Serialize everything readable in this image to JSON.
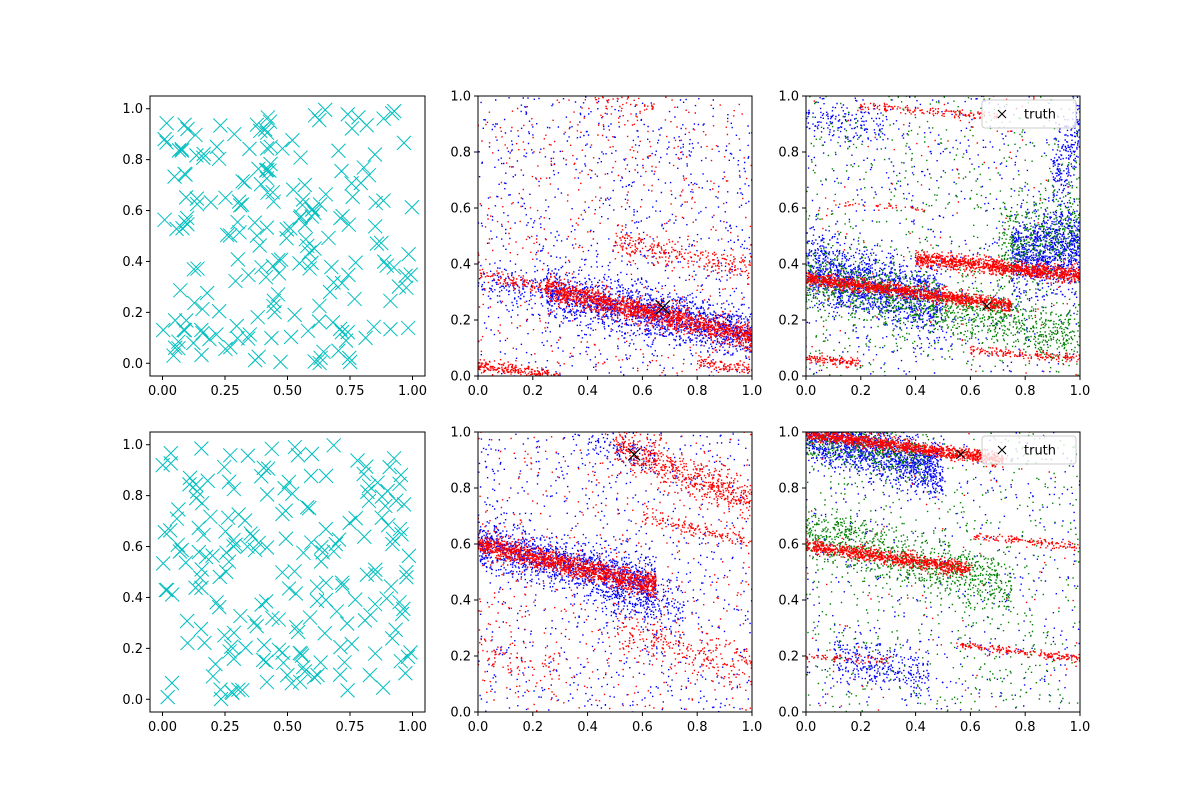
{
  "chart_data": [
    {
      "panel": "top-left",
      "type": "scatter",
      "title": "",
      "xlabel": "",
      "ylabel": "",
      "xlim": [
        -0.05,
        1.05
      ],
      "ylim": [
        -0.05,
        1.05
      ],
      "xticks": [
        0.0,
        0.25,
        0.5,
        0.75,
        1.0
      ],
      "xtick_labels": [
        "0.00",
        "0.25",
        "0.50",
        "0.75",
        "1.00"
      ],
      "yticks": [
        0.0,
        0.2,
        0.4,
        0.6,
        0.8,
        1.0
      ],
      "ytick_labels": [
        "0.0",
        "0.2",
        "0.4",
        "0.6",
        "0.8",
        "1.0"
      ],
      "series": [
        {
          "name": "samples",
          "marker": "x",
          "color": "#00bfbf",
          "size": "large",
          "count": 200,
          "distribution": "uniform",
          "seed": 11
        }
      ]
    },
    {
      "panel": "top-middle",
      "type": "scatter",
      "title": "",
      "xlabel": "",
      "ylabel": "",
      "xlim": [
        0.0,
        1.0
      ],
      "ylim": [
        0.0,
        1.0
      ],
      "xticks": [
        0.0,
        0.2,
        0.4,
        0.6,
        0.8,
        1.0
      ],
      "xtick_labels": [
        "0.0",
        "0.2",
        "0.4",
        "0.6",
        "0.8",
        "1.0"
      ],
      "yticks": [
        0.0,
        0.2,
        0.4,
        0.6,
        0.8,
        1.0
      ],
      "ytick_labels": [
        "0.0",
        "0.2",
        "0.4",
        "0.6",
        "0.8",
        "1.0"
      ],
      "series": [
        {
          "name": "blue",
          "color": "#0000ff",
          "uniform_count": 900,
          "seed": 21,
          "bands": [
            {
              "x0": 0.25,
              "x1": 1.0,
              "y_at_x0": 0.3,
              "y_at_x1": 0.15,
              "spread": 0.045,
              "count": 1500
            },
            {
              "x0": 0.0,
              "x1": 0.3,
              "y_at_x0": 0.33,
              "y_at_x1": 0.3,
              "spread": 0.04,
              "count": 150
            }
          ]
        },
        {
          "name": "red",
          "color": "#ff0000",
          "uniform_count": 550,
          "seed": 22,
          "bands": [
            {
              "x0": 0.25,
              "x1": 1.0,
              "y_at_x0": 0.31,
              "y_at_x1": 0.14,
              "spread": 0.022,
              "count": 1500
            },
            {
              "x0": 0.0,
              "x1": 0.25,
              "y_at_x0": 0.37,
              "y_at_x1": 0.31,
              "spread": 0.012,
              "count": 100
            },
            {
              "x0": 0.0,
              "x1": 0.3,
              "y_at_x0": 0.04,
              "y_at_x1": 0.0,
              "spread": 0.012,
              "count": 220
            },
            {
              "x0": 0.5,
              "x1": 1.0,
              "y_at_x0": 0.48,
              "y_at_x1": 0.38,
              "spread": 0.025,
              "count": 250
            },
            {
              "x0": 0.8,
              "x1": 1.0,
              "y_at_x0": 0.05,
              "y_at_x1": 0.02,
              "spread": 0.012,
              "count": 100
            },
            {
              "x0": 0.4,
              "x1": 0.65,
              "y_at_x0": 1.0,
              "y_at_x1": 0.95,
              "spread": 0.02,
              "count": 60
            }
          ]
        }
      ],
      "truth": {
        "x": 0.675,
        "y": 0.245,
        "marker": "x",
        "color": "#000000",
        "size": "large"
      }
    },
    {
      "panel": "top-right",
      "type": "scatter",
      "title": "",
      "xlabel": "",
      "ylabel": "",
      "xlim": [
        0.0,
        1.0
      ],
      "ylim": [
        0.0,
        1.0
      ],
      "xticks": [
        0.0,
        0.2,
        0.4,
        0.6,
        0.8,
        1.0
      ],
      "xtick_labels": [
        "0.0",
        "0.2",
        "0.4",
        "0.6",
        "0.8",
        "1.0"
      ],
      "yticks": [
        0.0,
        0.2,
        0.4,
        0.6,
        0.8,
        1.0
      ],
      "ytick_labels": [
        "0.0",
        "0.2",
        "0.4",
        "0.6",
        "0.8",
        "1.0"
      ],
      "series": [
        {
          "name": "blue",
          "color": "#0000ff",
          "uniform_count": 650,
          "seed": 31,
          "bands": [
            {
              "x0": 0.0,
              "x1": 0.5,
              "y_at_x0": 0.38,
              "y_at_x1": 0.25,
              "spread": 0.065,
              "count": 1300
            },
            {
              "x0": 0.75,
              "x1": 1.0,
              "y_at_x0": 0.43,
              "y_at_x1": 0.47,
              "spread": 0.07,
              "count": 900
            },
            {
              "x0": 0.9,
              "x1": 1.0,
              "y_at_x0": 0.7,
              "y_at_x1": 0.9,
              "spread": 0.08,
              "count": 200
            },
            {
              "x0": 0.0,
              "x1": 0.3,
              "y_at_x0": 0.93,
              "y_at_x1": 0.88,
              "spread": 0.04,
              "count": 150
            }
          ]
        },
        {
          "name": "green",
          "color": "#008000",
          "uniform_count": 650,
          "seed": 32,
          "bands": [
            {
              "x0": 0.0,
              "x1": 1.0,
              "y_at_x0": 0.35,
              "y_at_x1": 0.14,
              "spread": 0.05,
              "count": 1200
            },
            {
              "x0": 0.7,
              "x1": 1.0,
              "y_at_x0": 0.45,
              "y_at_x1": 0.55,
              "spread": 0.08,
              "count": 400
            }
          ]
        },
        {
          "name": "red",
          "color": "#ff0000",
          "uniform_count": 120,
          "seed": 33,
          "bands": [
            {
              "x0": 0.0,
              "x1": 0.75,
              "y_at_x0": 0.35,
              "y_at_x1": 0.25,
              "spread": 0.012,
              "count": 1300
            },
            {
              "x0": 0.4,
              "x1": 1.0,
              "y_at_x0": 0.42,
              "y_at_x1": 0.36,
              "spread": 0.014,
              "count": 1100
            },
            {
              "x0": 0.0,
              "x1": 0.2,
              "y_at_x0": 0.065,
              "y_at_x1": 0.045,
              "spread": 0.008,
              "count": 120
            },
            {
              "x0": 0.6,
              "x1": 1.0,
              "y_at_x0": 0.09,
              "y_at_x1": 0.06,
              "spread": 0.008,
              "count": 160
            },
            {
              "x0": 0.2,
              "x1": 0.7,
              "y_at_x0": 0.965,
              "y_at_x1": 0.925,
              "spread": 0.008,
              "count": 150
            },
            {
              "x0": 0.1,
              "x1": 0.45,
              "y_at_x0": 0.62,
              "y_at_x1": 0.595,
              "spread": 0.006,
              "count": 35
            }
          ]
        }
      ],
      "truth": {
        "x": 0.66,
        "y": 0.25,
        "marker": "x",
        "color": "#000000",
        "size": "small"
      },
      "legend": {
        "location": "top-right",
        "entries": [
          {
            "marker": "x",
            "color": "#000000",
            "label": "truth"
          }
        ]
      }
    },
    {
      "panel": "bottom-left",
      "type": "scatter",
      "title": "",
      "xlabel": "",
      "ylabel": "",
      "xlim": [
        -0.05,
        1.05
      ],
      "ylim": [
        -0.05,
        1.05
      ],
      "xticks": [
        0.0,
        0.25,
        0.5,
        0.75,
        1.0
      ],
      "xtick_labels": [
        "0.00",
        "0.25",
        "0.50",
        "0.75",
        "1.00"
      ],
      "yticks": [
        0.0,
        0.2,
        0.4,
        0.6,
        0.8,
        1.0
      ],
      "ytick_labels": [
        "0.0",
        "0.2",
        "0.4",
        "0.6",
        "0.8",
        "1.0"
      ],
      "series": [
        {
          "name": "samples",
          "marker": "x",
          "color": "#00bfbf",
          "size": "large",
          "count": 200,
          "distribution": "uniform",
          "seed": 41
        }
      ]
    },
    {
      "panel": "bottom-middle",
      "type": "scatter",
      "title": "",
      "xlabel": "",
      "ylabel": "",
      "xlim": [
        0.0,
        1.0
      ],
      "ylim": [
        0.0,
        1.0
      ],
      "xticks": [
        0.0,
        0.2,
        0.4,
        0.6,
        0.8,
        1.0
      ],
      "xtick_labels": [
        "0.0",
        "0.2",
        "0.4",
        "0.6",
        "0.8",
        "1.0"
      ],
      "yticks": [
        0.0,
        0.2,
        0.4,
        0.6,
        0.8,
        1.0
      ],
      "ytick_labels": [
        "0.0",
        "0.2",
        "0.4",
        "0.6",
        "0.8",
        "1.0"
      ],
      "series": [
        {
          "name": "blue",
          "color": "#0000ff",
          "uniform_count": 800,
          "seed": 51,
          "bands": [
            {
              "x0": 0.0,
              "x1": 0.65,
              "y_at_x0": 0.6,
              "y_at_x1": 0.45,
              "spread": 0.045,
              "count": 1300
            },
            {
              "x0": 0.45,
              "x1": 0.75,
              "y_at_x0": 0.42,
              "y_at_x1": 0.36,
              "spread": 0.05,
              "count": 250
            },
            {
              "x0": 0.4,
              "x1": 0.65,
              "y_at_x0": 0.96,
              "y_at_x1": 0.9,
              "spread": 0.03,
              "count": 100
            }
          ]
        },
        {
          "name": "red",
          "color": "#ff0000",
          "uniform_count": 500,
          "seed": 52,
          "bands": [
            {
              "x0": 0.0,
              "x1": 0.65,
              "y_at_x0": 0.6,
              "y_at_x1": 0.45,
              "spread": 0.02,
              "count": 1400
            },
            {
              "x0": 0.5,
              "x1": 1.0,
              "y_at_x0": 0.96,
              "y_at_x1": 0.75,
              "spread": 0.035,
              "count": 600
            },
            {
              "x0": 0.6,
              "x1": 1.0,
              "y_at_x0": 0.7,
              "y_at_x1": 0.6,
              "spread": 0.015,
              "count": 150
            },
            {
              "x0": 0.5,
              "x1": 1.0,
              "y_at_x0": 0.3,
              "y_at_x1": 0.15,
              "spread": 0.04,
              "count": 250
            },
            {
              "x0": 0.0,
              "x1": 0.3,
              "y_at_x0": 0.2,
              "y_at_x1": 0.15,
              "spread": 0.04,
              "count": 80
            }
          ]
        }
      ],
      "truth": {
        "x": 0.57,
        "y": 0.92,
        "marker": "x",
        "color": "#000000",
        "size": "medium"
      }
    },
    {
      "panel": "bottom-right",
      "type": "scatter",
      "title": "",
      "xlabel": "",
      "ylabel": "",
      "xlim": [
        0.0,
        1.0
      ],
      "ylim": [
        0.0,
        1.0
      ],
      "xticks": [
        0.0,
        0.2,
        0.4,
        0.6,
        0.8,
        1.0
      ],
      "xtick_labels": [
        "0.0",
        "0.2",
        "0.4",
        "0.6",
        "0.8",
        "1.0"
      ],
      "yticks": [
        0.0,
        0.2,
        0.4,
        0.6,
        0.8,
        1.0
      ],
      "ytick_labels": [
        "0.0",
        "0.2",
        "0.4",
        "0.6",
        "0.8",
        "1.0"
      ],
      "series": [
        {
          "name": "blue",
          "color": "#0000ff",
          "uniform_count": 500,
          "seed": 61,
          "bands": [
            {
              "x0": 0.0,
              "x1": 0.5,
              "y_at_x0": 1.0,
              "y_at_x1": 0.86,
              "spread": 0.05,
              "count": 1400
            },
            {
              "x0": 0.1,
              "x1": 0.45,
              "y_at_x0": 0.19,
              "y_at_x1": 0.12,
              "spread": 0.045,
              "count": 300
            }
          ]
        },
        {
          "name": "green",
          "color": "#008000",
          "uniform_count": 650,
          "seed": 62,
          "bands": [
            {
              "x0": 0.0,
              "x1": 0.75,
              "y_at_x0": 0.65,
              "y_at_x1": 0.44,
              "spread": 0.05,
              "count": 900
            },
            {
              "x0": 0.0,
              "x1": 0.45,
              "y_at_x0": 1.0,
              "y_at_x1": 0.9,
              "spread": 0.04,
              "count": 400
            }
          ]
        },
        {
          "name": "red",
          "color": "#ff0000",
          "uniform_count": 90,
          "seed": 63,
          "bands": [
            {
              "x0": 0.0,
              "x1": 0.72,
              "y_at_x0": 0.995,
              "y_at_x1": 0.9,
              "spread": 0.012,
              "count": 1200
            },
            {
              "x0": 0.0,
              "x1": 0.6,
              "y_at_x0": 0.595,
              "y_at_x1": 0.51,
              "spread": 0.013,
              "count": 900
            },
            {
              "x0": 0.6,
              "x1": 1.0,
              "y_at_x0": 0.63,
              "y_at_x1": 0.59,
              "spread": 0.007,
              "count": 130
            },
            {
              "x0": 0.0,
              "x1": 0.3,
              "y_at_x0": 0.2,
              "y_at_x1": 0.18,
              "spread": 0.007,
              "count": 60
            },
            {
              "x0": 0.55,
              "x1": 1.0,
              "y_at_x0": 0.24,
              "y_at_x1": 0.19,
              "spread": 0.007,
              "count": 200
            }
          ]
        }
      ],
      "truth": {
        "x": 0.565,
        "y": 0.92,
        "marker": "x",
        "color": "#000000",
        "size": "small"
      },
      "legend": {
        "location": "top-right",
        "entries": [
          {
            "marker": "x",
            "color": "#000000",
            "label": "truth"
          }
        ]
      }
    }
  ]
}
